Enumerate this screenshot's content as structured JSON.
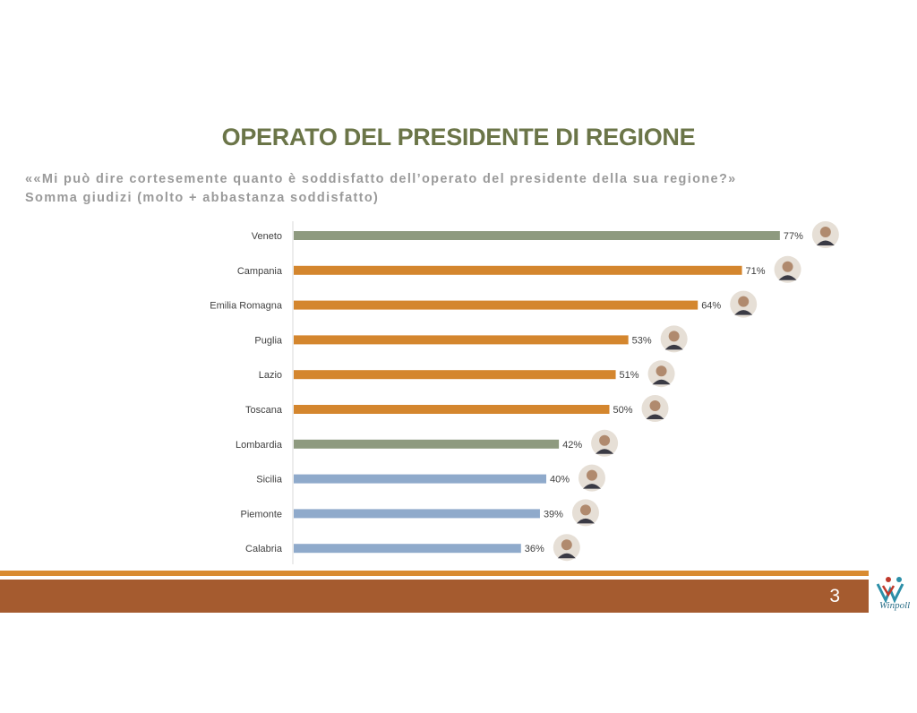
{
  "slide": {
    "title": "OPERATO DEL PRESIDENTE DI REGIONE",
    "subtitle_line1": "««Mi può dire cortesemente quanto è soddisfatto dell’operato del presidente della sua regione?»",
    "subtitle_line2": "Somma giudizi (molto + abbastanza soddisfatto)",
    "page_number": "3",
    "logo_text": "Winpoll"
  },
  "colors": {
    "title": "#6b7548",
    "green_bar": "#8e9a7f",
    "orange_bar": "#d4862e",
    "blue_bar": "#8faacb",
    "band": "#a55b2f",
    "band_thin": "#d98b31"
  },
  "chart_data": {
    "type": "bar",
    "orientation": "horizontal",
    "title": "",
    "xlabel": "",
    "ylabel": "",
    "xlim": [
      0,
      100
    ],
    "grid": false,
    "legend": "none",
    "categories": [
      "Veneto",
      "Campania",
      "Emilia Romagna",
      "Puglia",
      "Lazio",
      "Toscana",
      "Lombardia",
      "Sicilia",
      "Piemonte",
      "Calabria"
    ],
    "values": [
      77,
      71,
      64,
      53,
      51,
      50,
      42,
      40,
      39,
      36
    ],
    "value_labels": [
      "77%",
      "71%",
      "64%",
      "53%",
      "51%",
      "50%",
      "42%",
      "40%",
      "39%",
      "36%"
    ],
    "bar_colors": [
      "green",
      "orange",
      "orange",
      "orange",
      "orange",
      "orange",
      "green",
      "blue",
      "blue",
      "blue"
    ],
    "unit": "%"
  }
}
